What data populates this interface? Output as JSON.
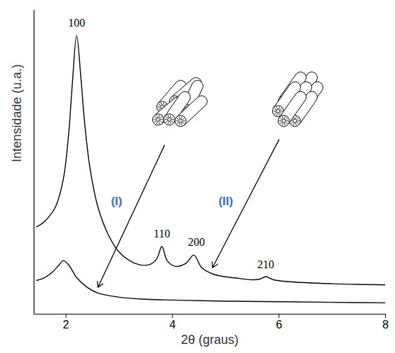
{
  "chart_data": {
    "type": "line",
    "xlabel": "2θ (graus)",
    "ylabel": "Intensidade (u.a.)",
    "xlim": [
      1.4,
      8
    ],
    "xticks": [
      2,
      4,
      6,
      8
    ],
    "ylim": [
      0,
      108
    ],
    "yticks": [],
    "tick_labels": "x",
    "series": [
      {
        "color": "#000000",
        "x": [
          1.45,
          1.6,
          1.8,
          1.95,
          2.05,
          2.12,
          2.2,
          2.28,
          2.35,
          2.45,
          2.6,
          2.8,
          3.0,
          3.3,
          3.55,
          3.7,
          3.8,
          3.9,
          4.05,
          4.25,
          4.4,
          4.55,
          4.8,
          5.2,
          5.5,
          5.65,
          5.75,
          5.9,
          6.2,
          7.0,
          8.0
        ],
        "values": [
          31,
          33,
          38,
          48,
          64,
          82,
          99,
          84,
          68,
          52,
          38,
          28,
          22,
          18,
          17.5,
          19.5,
          24,
          19,
          17,
          18,
          21,
          16.5,
          14,
          12.8,
          12.2,
          12.5,
          13.3,
          12.2,
          11.5,
          10.8,
          10.4
        ]
      },
      {
        "color": "#000000",
        "x": [
          1.45,
          1.6,
          1.75,
          1.87,
          1.95,
          2.05,
          2.2,
          2.4,
          2.6,
          3.0,
          3.5,
          4.0,
          5.0,
          6.0,
          7.0,
          8.0
        ],
        "values": [
          12,
          13,
          15,
          17.5,
          19,
          17.5,
          13,
          9.5,
          7.5,
          6,
          5.3,
          5,
          4.6,
          4.4,
          4.2,
          4
        ]
      }
    ],
    "annotations": [
      {
        "text": "100",
        "x": 2.2,
        "y": 103.5,
        "color": "#000000"
      },
      {
        "text": "110",
        "x": 3.8,
        "y": 28.5,
        "color": "#000000"
      },
      {
        "text": "200",
        "x": 4.45,
        "y": 25.5,
        "color": "#000000"
      },
      {
        "text": "210",
        "x": 5.75,
        "y": 17.5,
        "color": "#000000"
      },
      {
        "text": "(I)",
        "x": 2.95,
        "y": 40,
        "color": "#3b6fc6"
      },
      {
        "text": "(II)",
        "x": 5.0,
        "y": 40,
        "color": "#3b6fc6"
      }
    ]
  }
}
